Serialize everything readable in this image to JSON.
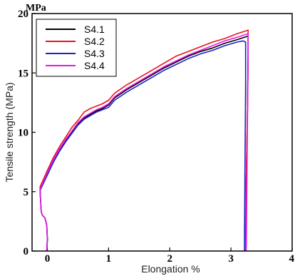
{
  "chart_data": {
    "type": "line",
    "title": "",
    "unit_label": "MPa",
    "xlabel": "Elongation %",
    "ylabel": "Tensile strength (MPa)",
    "xlim": [
      -0.25,
      4
    ],
    "ylim": [
      0,
      20
    ],
    "x_ticks": [
      0,
      1,
      2,
      3,
      4
    ],
    "y_ticks": [
      0,
      5,
      10,
      15,
      20
    ],
    "grid": false,
    "legend_position": "top-left",
    "series": [
      {
        "name": "S4.1",
        "color": "#000000",
        "points": [
          [
            -0.01,
            0
          ],
          [
            0.0,
            1.0
          ],
          [
            -0.01,
            2.2
          ],
          [
            -0.04,
            2.8
          ],
          [
            -0.08,
            3.0
          ],
          [
            -0.1,
            3.3
          ],
          [
            -0.11,
            4.2
          ],
          [
            -0.12,
            5.2
          ],
          [
            0.0,
            6.5
          ],
          [
            0.1,
            7.6
          ],
          [
            0.2,
            8.5
          ],
          [
            0.3,
            9.3
          ],
          [
            0.4,
            10.0
          ],
          [
            0.5,
            10.7
          ],
          [
            0.6,
            11.2
          ],
          [
            0.7,
            11.5
          ],
          [
            0.8,
            11.8
          ],
          [
            0.9,
            12.0
          ],
          [
            1.0,
            12.3
          ],
          [
            1.1,
            12.9
          ],
          [
            1.3,
            13.6
          ],
          [
            1.5,
            14.2
          ],
          [
            1.7,
            14.8
          ],
          [
            1.9,
            15.4
          ],
          [
            2.1,
            15.9
          ],
          [
            2.3,
            16.4
          ],
          [
            2.5,
            16.8
          ],
          [
            2.7,
            17.1
          ],
          [
            2.9,
            17.5
          ],
          [
            3.1,
            17.8
          ],
          [
            3.22,
            18.0
          ],
          [
            3.28,
            18.1
          ],
          [
            3.28,
            16.5
          ],
          [
            3.27,
            12.0
          ],
          [
            3.25,
            6.0
          ],
          [
            3.24,
            0
          ]
        ]
      },
      {
        "name": "S4.2",
        "color": "#e8131b",
        "points": [
          [
            -0.01,
            0
          ],
          [
            0.0,
            1.0
          ],
          [
            -0.01,
            2.2
          ],
          [
            -0.04,
            2.8
          ],
          [
            -0.08,
            3.0
          ],
          [
            -0.1,
            3.3
          ],
          [
            -0.11,
            4.2
          ],
          [
            -0.12,
            5.4
          ],
          [
            0.0,
            6.8
          ],
          [
            0.1,
            7.9
          ],
          [
            0.2,
            8.8
          ],
          [
            0.3,
            9.6
          ],
          [
            0.4,
            10.4
          ],
          [
            0.5,
            11.0
          ],
          [
            0.6,
            11.7
          ],
          [
            0.7,
            12.0
          ],
          [
            0.8,
            12.2
          ],
          [
            0.9,
            12.4
          ],
          [
            1.0,
            12.7
          ],
          [
            1.1,
            13.3
          ],
          [
            1.3,
            14.0
          ],
          [
            1.5,
            14.6
          ],
          [
            1.7,
            15.2
          ],
          [
            1.9,
            15.8
          ],
          [
            2.1,
            16.4
          ],
          [
            2.3,
            16.8
          ],
          [
            2.5,
            17.2
          ],
          [
            2.7,
            17.6
          ],
          [
            2.9,
            17.9
          ],
          [
            3.1,
            18.3
          ],
          [
            3.22,
            18.5
          ],
          [
            3.28,
            18.6
          ],
          [
            3.28,
            17.0
          ],
          [
            3.27,
            12.0
          ],
          [
            3.25,
            6.0
          ],
          [
            3.24,
            0
          ]
        ]
      },
      {
        "name": "S4.3",
        "color": "#1a22c8",
        "points": [
          [
            -0.01,
            0
          ],
          [
            0.0,
            1.0
          ],
          [
            -0.01,
            2.2
          ],
          [
            -0.04,
            2.8
          ],
          [
            -0.08,
            3.0
          ],
          [
            -0.1,
            3.3
          ],
          [
            -0.11,
            4.2
          ],
          [
            -0.12,
            5.1
          ],
          [
            0.0,
            6.4
          ],
          [
            0.1,
            7.5
          ],
          [
            0.2,
            8.4
          ],
          [
            0.3,
            9.2
          ],
          [
            0.4,
            9.9
          ],
          [
            0.5,
            10.6
          ],
          [
            0.6,
            11.1
          ],
          [
            0.7,
            11.4
          ],
          [
            0.8,
            11.7
          ],
          [
            0.9,
            11.9
          ],
          [
            1.0,
            12.1
          ],
          [
            1.1,
            12.7
          ],
          [
            1.3,
            13.4
          ],
          [
            1.5,
            14.0
          ],
          [
            1.7,
            14.6
          ],
          [
            1.9,
            15.2
          ],
          [
            2.1,
            15.7
          ],
          [
            2.3,
            16.2
          ],
          [
            2.5,
            16.6
          ],
          [
            2.7,
            16.9
          ],
          [
            2.9,
            17.3
          ],
          [
            3.1,
            17.6
          ],
          [
            3.2,
            17.7
          ],
          [
            3.24,
            17.6
          ],
          [
            3.24,
            14.0
          ],
          [
            3.23,
            8.0
          ],
          [
            3.22,
            0
          ]
        ]
      },
      {
        "name": "S4.4",
        "color": "#e21ae2",
        "points": [
          [
            -0.01,
            0
          ],
          [
            0.0,
            1.0
          ],
          [
            -0.01,
            2.2
          ],
          [
            -0.04,
            2.8
          ],
          [
            -0.08,
            3.0
          ],
          [
            -0.1,
            3.3
          ],
          [
            -0.11,
            4.2
          ],
          [
            -0.12,
            5.2
          ],
          [
            0.0,
            6.6
          ],
          [
            0.1,
            7.7
          ],
          [
            0.2,
            8.6
          ],
          [
            0.3,
            9.4
          ],
          [
            0.4,
            10.1
          ],
          [
            0.5,
            10.8
          ],
          [
            0.6,
            11.3
          ],
          [
            0.7,
            11.6
          ],
          [
            0.8,
            11.9
          ],
          [
            0.9,
            12.1
          ],
          [
            1.0,
            12.4
          ],
          [
            1.1,
            13.0
          ],
          [
            1.3,
            13.7
          ],
          [
            1.5,
            14.3
          ],
          [
            1.7,
            14.9
          ],
          [
            1.9,
            15.5
          ],
          [
            2.1,
            16.0
          ],
          [
            2.3,
            16.5
          ],
          [
            2.5,
            16.9
          ],
          [
            2.7,
            17.3
          ],
          [
            2.9,
            17.7
          ],
          [
            3.1,
            18.0
          ],
          [
            3.22,
            18.2
          ],
          [
            3.28,
            18.3
          ],
          [
            3.28,
            16.0
          ],
          [
            3.27,
            11.0
          ],
          [
            3.26,
            5.0
          ],
          [
            3.25,
            0
          ]
        ]
      }
    ]
  }
}
